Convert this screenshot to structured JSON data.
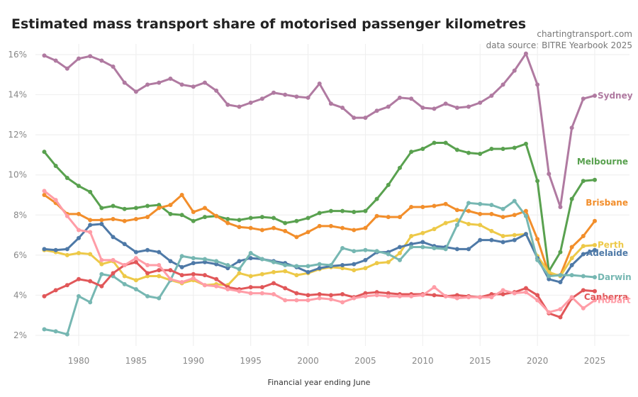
{
  "chart_data": {
    "type": "line",
    "title": "Estimated mass transport share of motorised passenger kilometres",
    "credits": [
      "chartingtransport.com",
      "data source: BITRE Yearbook 2025"
    ],
    "xlabel": "Financial year ending June",
    "ylabel": "",
    "x_start": 1977,
    "x_end": 2025,
    "xlim": [
      1975.5,
      2028
    ],
    "ylim": [
      1.5,
      16.5
    ],
    "x_ticks": [
      1980,
      1985,
      1990,
      1995,
      2000,
      2005,
      2010,
      2015,
      2020,
      2025
    ],
    "x_tick_labels": [
      "1980",
      "1985",
      "1990",
      "1995",
      "2000",
      "2005",
      "2010",
      "2015",
      "2020",
      "2025"
    ],
    "y_ticks": [
      2,
      4,
      6,
      8,
      10,
      12,
      14,
      16
    ],
    "y_tick_labels": [
      "2%",
      "4%",
      "6%",
      "8%",
      "10%",
      "12%",
      "14%",
      "16%"
    ],
    "grid": true,
    "legend": "direct labels at right end of lines",
    "series": [
      {
        "name": "Sydney",
        "color": "#b07aa1",
        "values": [
          15.95,
          15.7,
          15.3,
          15.8,
          15.92,
          15.7,
          15.4,
          14.6,
          14.15,
          14.5,
          14.6,
          14.8,
          14.5,
          14.4,
          14.6,
          14.2,
          13.5,
          13.4,
          13.6,
          13.8,
          14.1,
          14.0,
          13.9,
          13.85,
          14.55,
          13.55,
          13.35,
          12.85,
          12.85,
          13.2,
          13.4,
          13.85,
          13.8,
          13.35,
          13.3,
          13.55,
          13.35,
          13.4,
          13.6,
          13.95,
          14.5,
          15.2,
          16.05,
          14.5,
          10.05,
          8.4,
          12.35,
          13.8,
          13.95
        ]
      },
      {
        "name": "Melbourne",
        "color": "#59a14f",
        "values": [
          11.15,
          10.45,
          9.85,
          9.45,
          9.15,
          8.35,
          8.45,
          8.3,
          8.35,
          8.45,
          8.5,
          8.05,
          8.0,
          7.7,
          7.9,
          7.95,
          7.8,
          7.75,
          7.85,
          7.9,
          7.85,
          7.6,
          7.7,
          7.85,
          8.1,
          8.2,
          8.2,
          8.15,
          8.2,
          8.8,
          9.5,
          10.35,
          11.15,
          11.3,
          11.6,
          11.6,
          11.25,
          11.1,
          11.05,
          11.3,
          11.3,
          11.35,
          11.55,
          9.7,
          5.2,
          6.15,
          8.8,
          9.7,
          9.75
        ]
      },
      {
        "name": "Brisbane",
        "color": "#f28e2b",
        "values": [
          9.0,
          8.6,
          8.05,
          8.05,
          7.75,
          7.75,
          7.8,
          7.7,
          7.8,
          7.9,
          8.35,
          8.5,
          9.0,
          8.15,
          8.35,
          7.95,
          7.6,
          7.4,
          7.35,
          7.25,
          7.35,
          7.2,
          6.9,
          7.15,
          7.45,
          7.45,
          7.35,
          7.25,
          7.35,
          7.95,
          7.9,
          7.9,
          8.4,
          8.4,
          8.45,
          8.55,
          8.25,
          8.2,
          8.05,
          8.05,
          7.9,
          8.0,
          8.2,
          6.8,
          5.05,
          5.0,
          6.4,
          6.95,
          7.7
        ]
      },
      {
        "name": "Perth",
        "color": "#edc948",
        "values": [
          6.25,
          6.15,
          6.0,
          6.1,
          6.05,
          5.55,
          5.7,
          4.95,
          4.75,
          4.95,
          4.95,
          4.75,
          4.6,
          4.75,
          4.5,
          4.55,
          4.5,
          5.1,
          4.95,
          5.05,
          5.15,
          5.2,
          5.0,
          5.1,
          5.3,
          5.4,
          5.35,
          5.25,
          5.35,
          5.6,
          5.65,
          6.1,
          6.95,
          7.1,
          7.3,
          7.6,
          7.75,
          7.55,
          7.5,
          7.2,
          6.95,
          7.0,
          7.05,
          5.95,
          5.15,
          4.95,
          5.85,
          6.45,
          6.5
        ]
      },
      {
        "name": "Adelaide",
        "color": "#4e79a7",
        "values": [
          6.3,
          6.25,
          6.3,
          6.85,
          7.5,
          7.55,
          6.9,
          6.55,
          6.15,
          6.25,
          6.15,
          5.7,
          5.4,
          5.6,
          5.65,
          5.55,
          5.35,
          5.7,
          5.85,
          5.8,
          5.7,
          5.6,
          5.4,
          5.15,
          5.35,
          5.45,
          5.5,
          5.55,
          5.75,
          6.15,
          6.15,
          6.4,
          6.55,
          6.65,
          6.45,
          6.4,
          6.3,
          6.3,
          6.75,
          6.75,
          6.65,
          6.75,
          7.05,
          5.85,
          4.8,
          4.65,
          5.5,
          6.05,
          6.25
        ]
      },
      {
        "name": "Darwin",
        "color": "#76b7b2",
        "values": [
          2.3,
          2.2,
          2.05,
          3.95,
          3.65,
          5.05,
          4.95,
          4.55,
          4.3,
          3.95,
          3.85,
          4.75,
          5.95,
          5.85,
          5.8,
          5.7,
          5.5,
          5.3,
          6.1,
          5.8,
          5.65,
          5.5,
          5.45,
          5.45,
          5.55,
          5.5,
          6.35,
          6.2,
          6.25,
          6.2,
          6.05,
          5.75,
          6.4,
          6.4,
          6.35,
          6.3,
          7.5,
          8.6,
          8.55,
          8.5,
          8.3,
          8.7,
          7.95,
          5.75,
          4.95,
          5.0,
          5.0,
          4.95,
          4.9
        ]
      },
      {
        "name": "Canberra",
        "color": "#e15759",
        "values": [
          3.95,
          4.25,
          4.5,
          4.8,
          4.7,
          4.45,
          5.1,
          5.5,
          5.65,
          5.1,
          5.25,
          5.25,
          5.0,
          5.05,
          5.0,
          4.8,
          4.4,
          4.3,
          4.4,
          4.4,
          4.6,
          4.35,
          4.1,
          4.0,
          4.05,
          4.0,
          4.05,
          3.9,
          4.1,
          4.15,
          4.1,
          4.05,
          4.05,
          4.05,
          4.0,
          3.95,
          4.0,
          3.95,
          3.9,
          4.05,
          4.05,
          4.15,
          4.35,
          4.0,
          3.1,
          2.9,
          3.85,
          4.25,
          4.2
        ]
      },
      {
        "name": "Hobart",
        "color": "#ff9da7",
        "values": [
          9.2,
          8.75,
          7.95,
          7.25,
          7.15,
          5.75,
          5.75,
          5.5,
          5.85,
          5.5,
          5.5,
          4.8,
          4.65,
          4.85,
          4.5,
          4.45,
          4.3,
          4.2,
          4.1,
          4.1,
          4.05,
          3.75,
          3.75,
          3.75,
          3.85,
          3.8,
          3.65,
          3.85,
          3.95,
          4.0,
          3.95,
          3.95,
          3.95,
          4.0,
          4.4,
          3.95,
          3.85,
          3.9,
          3.9,
          3.9,
          4.25,
          4.1,
          4.15,
          3.75,
          3.15,
          3.3,
          3.9,
          3.35,
          3.75
        ]
      }
    ]
  }
}
